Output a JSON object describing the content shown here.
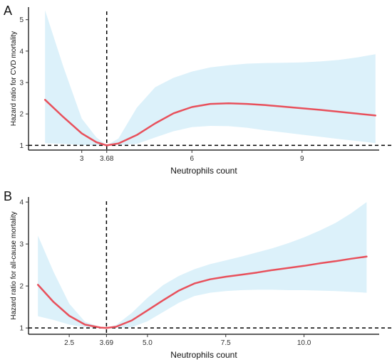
{
  "chart_data": [
    {
      "panel": "A",
      "type": "line",
      "xlabel": "Neutrophils count",
      "ylabel": "Hazard ratio for CVD mortality",
      "xlim": [
        1.55,
        11.1
      ],
      "ylim": [
        0.85,
        5.4
      ],
      "x_ticks": [
        {
          "value": 3,
          "label": "3"
        },
        {
          "value": 3.68,
          "label": "3.68"
        },
        {
          "value": 6,
          "label": "6"
        },
        {
          "value": 9,
          "label": "9"
        }
      ],
      "y_ticks": [
        1,
        2,
        3,
        4,
        5
      ],
      "vline": 3.68,
      "hline": 1,
      "grid": false,
      "colors": {
        "curve": "#e8505b",
        "band": "#dcf1fa"
      },
      "series": [
        {
          "x": [
            2.0,
            2.5,
            3.0,
            3.4,
            3.68,
            4.0,
            4.5,
            5.0,
            5.5,
            6.0,
            6.5,
            7.0,
            7.5,
            8.0,
            8.5,
            9.0,
            9.5,
            10.0,
            10.5,
            11.0
          ],
          "y": [
            2.45,
            1.9,
            1.38,
            1.1,
            1.0,
            1.06,
            1.33,
            1.7,
            2.02,
            2.22,
            2.32,
            2.34,
            2.32,
            2.28,
            2.23,
            2.18,
            2.13,
            2.07,
            2.01,
            1.95
          ],
          "lower": [
            1.07,
            1.05,
            1.01,
            1.0,
            1.0,
            1.01,
            1.05,
            1.25,
            1.45,
            1.58,
            1.62,
            1.61,
            1.56,
            1.48,
            1.41,
            1.34,
            1.27,
            1.2,
            1.14,
            1.07
          ],
          "upper": [
            5.3,
            3.5,
            1.85,
            1.25,
            1.0,
            1.22,
            2.2,
            2.85,
            3.15,
            3.35,
            3.48,
            3.55,
            3.6,
            3.62,
            3.63,
            3.64,
            3.67,
            3.72,
            3.8,
            3.9
          ]
        }
      ]
    },
    {
      "panel": "B",
      "type": "line",
      "xlabel": "Neutrophils count",
      "ylabel": "Hazard ratio for all-cause mortality",
      "xlim": [
        1.2,
        12.4
      ],
      "ylim": [
        0.85,
        4.12
      ],
      "x_ticks": [
        {
          "value": 2.5,
          "label": "2.5"
        },
        {
          "value": 3.69,
          "label": "3.69"
        },
        {
          "value": 5.0,
          "label": "5.0"
        },
        {
          "value": 7.5,
          "label": "7.5"
        },
        {
          "value": 10.0,
          "label": "10.0"
        }
      ],
      "y_ticks": [
        1,
        2,
        3,
        4
      ],
      "vline": 3.69,
      "hline": 1,
      "grid": false,
      "colors": {
        "curve": "#e8505b",
        "band": "#dcf1fa"
      },
      "series": [
        {
          "x": [
            1.5,
            2.0,
            2.5,
            3.0,
            3.5,
            3.69,
            4.0,
            4.5,
            5.0,
            5.5,
            6.0,
            6.5,
            7.0,
            7.5,
            8.0,
            8.5,
            9.0,
            9.5,
            10.0,
            10.5,
            11.0,
            11.5,
            12.0
          ],
          "y": [
            2.03,
            1.62,
            1.29,
            1.08,
            1.01,
            1.0,
            1.03,
            1.18,
            1.42,
            1.66,
            1.89,
            2.06,
            2.16,
            2.22,
            2.27,
            2.32,
            2.38,
            2.43,
            2.48,
            2.54,
            2.59,
            2.65,
            2.7
          ],
          "lower": [
            1.28,
            1.19,
            1.08,
            1.02,
            1.0,
            1.0,
            1.0,
            1.02,
            1.16,
            1.38,
            1.6,
            1.76,
            1.84,
            1.88,
            1.9,
            1.91,
            1.91,
            1.9,
            1.9,
            1.89,
            1.88,
            1.86,
            1.84
          ],
          "upper": [
            3.2,
            2.34,
            1.58,
            1.15,
            1.02,
            1.0,
            1.07,
            1.36,
            1.72,
            2.02,
            2.24,
            2.4,
            2.52,
            2.61,
            2.7,
            2.8,
            2.9,
            3.02,
            3.16,
            3.32,
            3.5,
            3.73,
            4.0
          ]
        }
      ]
    }
  ]
}
